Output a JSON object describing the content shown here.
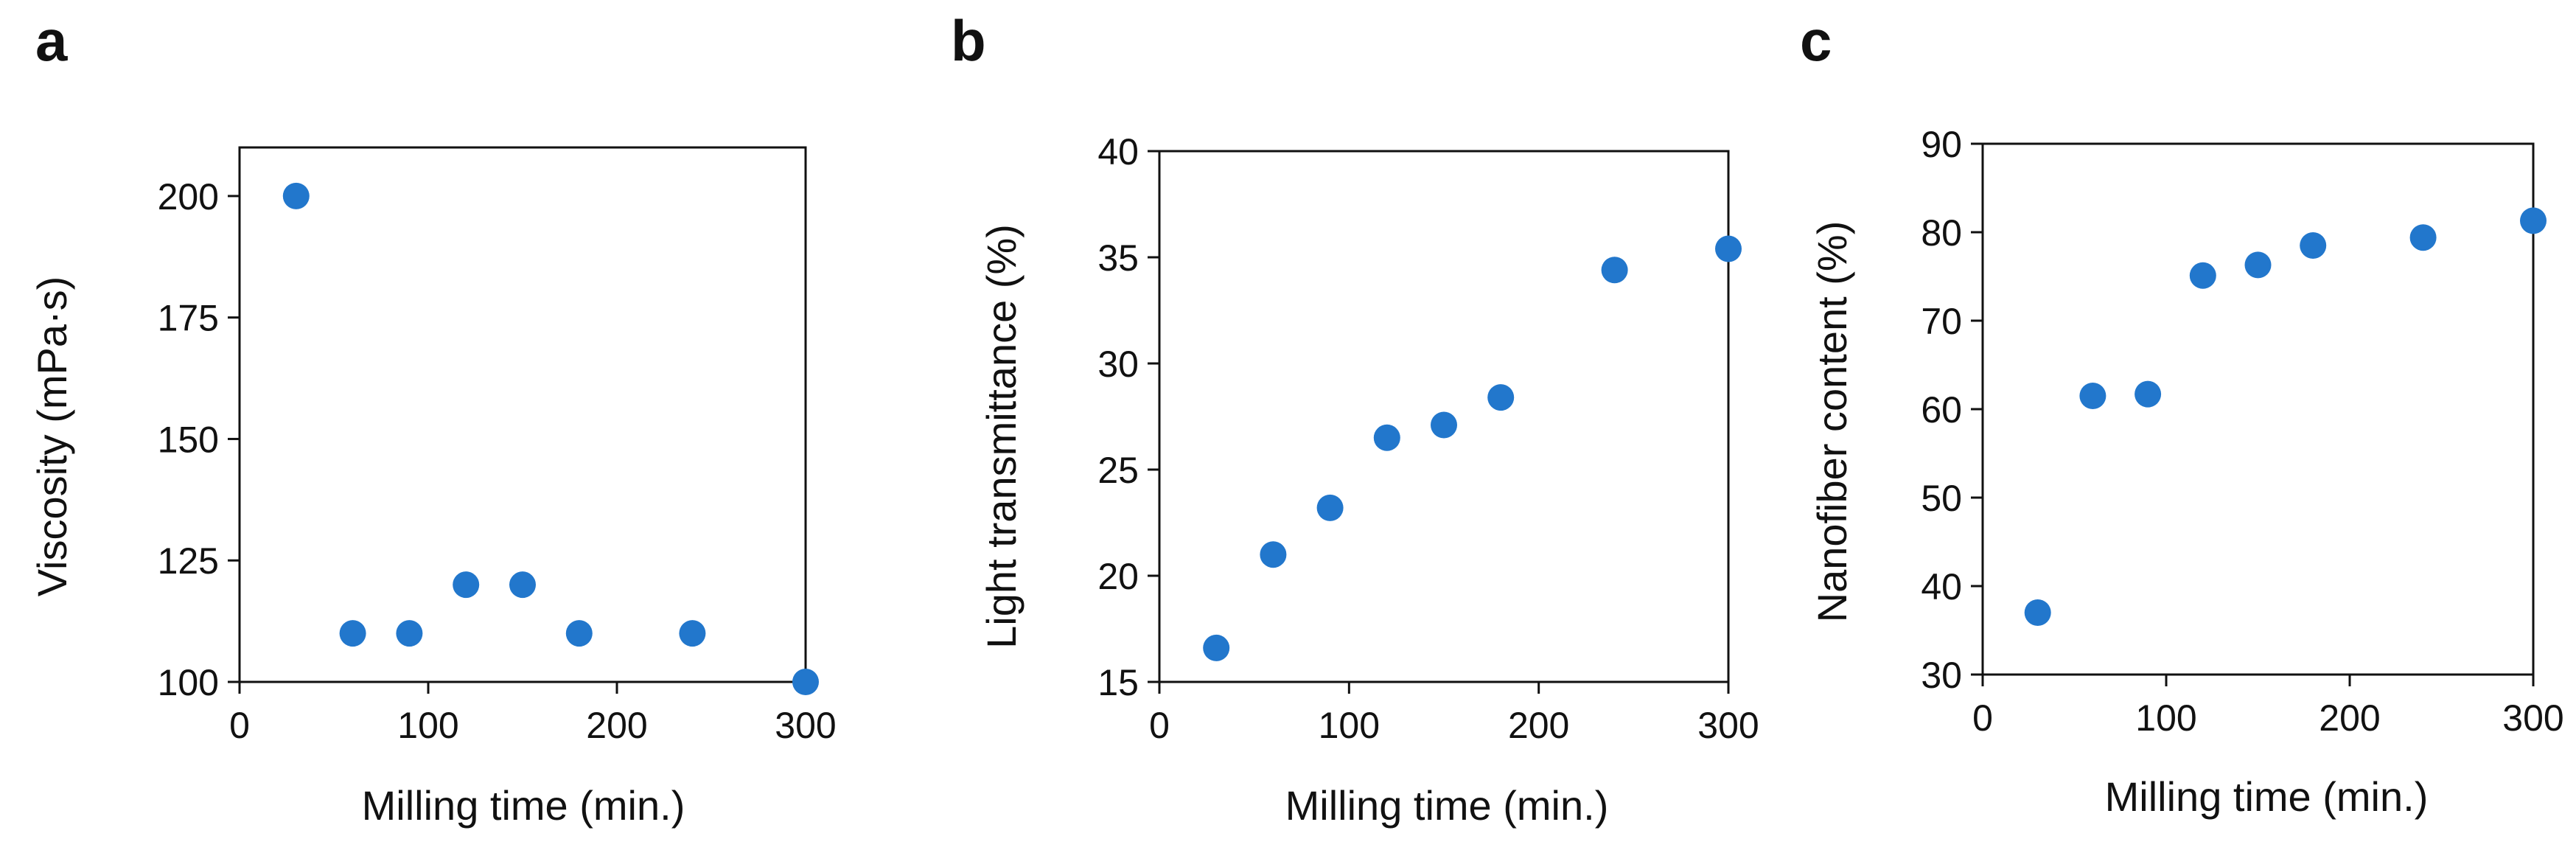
{
  "chart_data": [
    {
      "type": "scatter",
      "panel": "a",
      "title": "",
      "xlabel": "Milling time (min.)",
      "ylabel": "Viscosity (mPa·s)",
      "xlim": [
        0,
        300
      ],
      "ylim": [
        100,
        210
      ],
      "xticks": [
        0,
        100,
        200,
        300
      ],
      "yticks": [
        100,
        125,
        150,
        175,
        200
      ],
      "x": [
        30,
        60,
        90,
        120,
        150,
        180,
        240,
        300
      ],
      "y": [
        200,
        110,
        110,
        120,
        120,
        110,
        110,
        100
      ]
    },
    {
      "type": "scatter",
      "panel": "b",
      "title": "",
      "xlabel": "Milling time (min.)",
      "ylabel": "Light transmittance (%)",
      "xlim": [
        0,
        300
      ],
      "ylim": [
        15,
        40
      ],
      "xticks": [
        0,
        100,
        200,
        300
      ],
      "yticks": [
        15,
        20,
        25,
        30,
        35,
        40
      ],
      "x": [
        30,
        60,
        90,
        120,
        150,
        180,
        240,
        300
      ],
      "y": [
        16.6,
        21.0,
        23.2,
        26.5,
        27.1,
        28.4,
        34.4,
        35.4
      ]
    },
    {
      "type": "scatter",
      "panel": "c",
      "title": "",
      "xlabel": "Milling time (min.)",
      "ylabel": "Nanofiber content (%)",
      "xlim": [
        0,
        300
      ],
      "ylim": [
        30,
        90
      ],
      "xticks": [
        0,
        100,
        200,
        300
      ],
      "yticks": [
        30,
        40,
        50,
        60,
        70,
        80,
        90
      ],
      "x": [
        30,
        60,
        90,
        120,
        150,
        180,
        240,
        300
      ],
      "y": [
        37.0,
        61.5,
        61.7,
        75.1,
        76.3,
        78.5,
        79.4,
        81.3
      ]
    }
  ],
  "colors": {
    "marker": "#2277CC",
    "axis": "#111111"
  }
}
